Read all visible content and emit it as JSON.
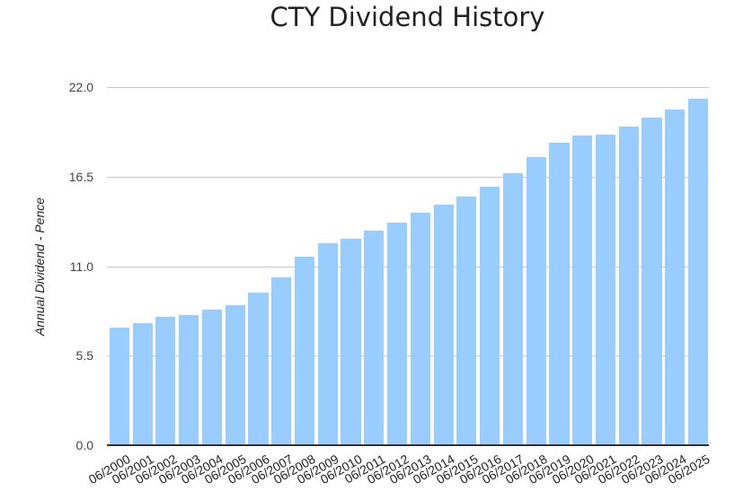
{
  "chart_data": {
    "type": "bar",
    "title": "CTY Dividend History",
    "xlabel": "",
    "ylabel": "Annual Dividend - Pence",
    "ylim": [
      0,
      22
    ],
    "yticks": [
      "0.0",
      "5.5",
      "11.0",
      "16.5",
      "22.0"
    ],
    "grid": true,
    "legend": "none",
    "bar_color": "#99ccff",
    "categories": [
      "06/2000",
      "06/2001",
      "06/2002",
      "06/2003",
      "06/2004",
      "06/2005",
      "06/2006",
      "06/2007",
      "06/2008",
      "06/2009",
      "06/2010",
      "06/2011",
      "06/2012",
      "06/2013",
      "06/2014",
      "06/2015",
      "06/2016",
      "06/2017",
      "06/2018",
      "06/2019",
      "06/2020",
      "06/2021",
      "06/2022",
      "06/2023",
      "06/2024",
      "06/2025"
    ],
    "values": [
      7.2,
      7.5,
      7.9,
      8.0,
      8.3,
      8.6,
      9.4,
      10.3,
      11.6,
      12.4,
      12.7,
      13.2,
      13.7,
      14.3,
      14.8,
      15.3,
      15.9,
      16.7,
      17.7,
      18.6,
      19.0,
      19.1,
      19.6,
      20.1,
      20.6,
      21.3
    ]
  }
}
